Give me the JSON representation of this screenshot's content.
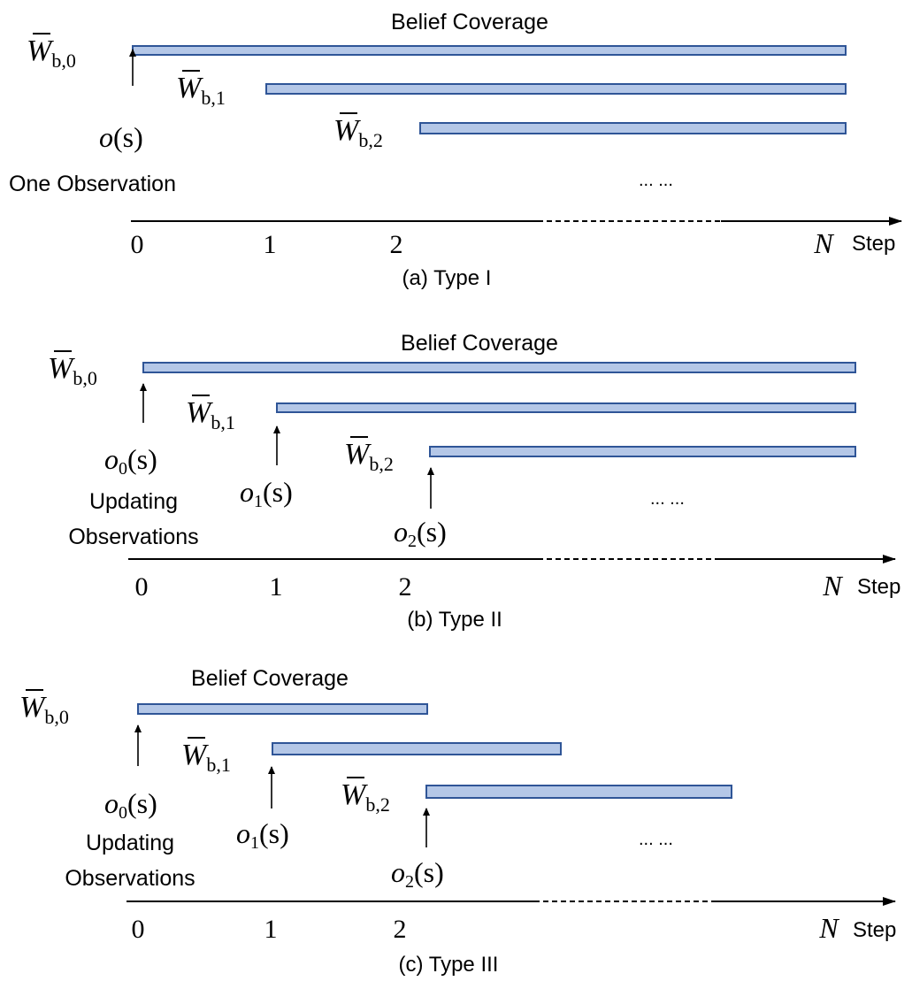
{
  "panels": [
    {
      "caption": "(a) Type I",
      "coverage_label": "Belief Coverage",
      "belief_labels": [
        "W",
        "W",
        "W"
      ],
      "belief_subscripts": [
        "b,0",
        "b,1",
        "b,2"
      ],
      "observation_labels": [
        "o",
        "",
        ""
      ],
      "observation_subscripts": [
        "",
        "",
        ""
      ],
      "observation_args": [
        "(s)",
        "",
        ""
      ],
      "note": "One Observation",
      "note_line2": "",
      "ellipsis": "... ...",
      "ticks": [
        "0",
        "1",
        "2"
      ],
      "end_tick": "N",
      "axis_label": "Step"
    },
    {
      "caption": "(b) Type II",
      "coverage_label": "Belief Coverage",
      "belief_labels": [
        "W",
        "W",
        "W"
      ],
      "belief_subscripts": [
        "b,0",
        "b,1",
        "b,2"
      ],
      "observation_labels": [
        "o",
        "o",
        "o"
      ],
      "observation_subscripts": [
        "0",
        "1",
        "2"
      ],
      "observation_args": [
        "(s)",
        "(s)",
        "(s)"
      ],
      "note": "Updating",
      "note_line2": "Observations",
      "ellipsis": "... ...",
      "ticks": [
        "0",
        "1",
        "2"
      ],
      "end_tick": "N",
      "axis_label": "Step"
    },
    {
      "caption": "(c) Type III",
      "coverage_label": "Belief Coverage",
      "belief_labels": [
        "W",
        "W",
        "W"
      ],
      "belief_subscripts": [
        "b,0",
        "b,1",
        "b,2"
      ],
      "observation_labels": [
        "o",
        "o",
        "o"
      ],
      "observation_subscripts": [
        "0",
        "1",
        "2"
      ],
      "observation_args": [
        "(s)",
        "(s)",
        "(s)"
      ],
      "note": "Updating",
      "note_line2": "Observations",
      "ellipsis": "... ...",
      "ticks": [
        "0",
        "1",
        "2"
      ],
      "end_tick": "N",
      "axis_label": "Step"
    }
  ],
  "colors": {
    "bar_fill": "#b4c7e7",
    "bar_stroke": "#2f5597",
    "text": "#000000"
  }
}
